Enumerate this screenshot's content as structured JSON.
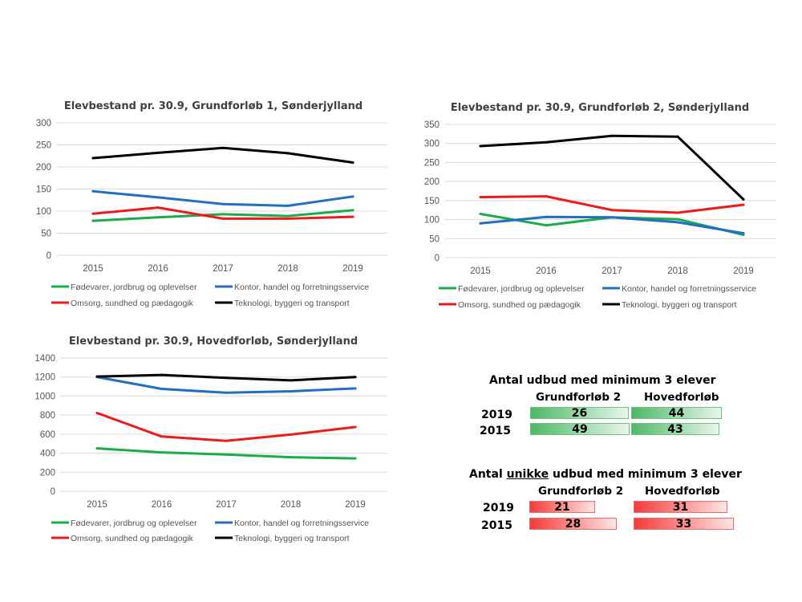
{
  "colors": {
    "Fødevarer, jordbrug og oplevelser": "#1aab4b",
    "Kontor, handel og forretningsservice": "#1f70c1",
    "Omsorg, sundhed og pædagogik": "#ea1c1c",
    "Teknologi, byggeri og transport": "#000000",
    "grid": "#d9d9d9",
    "table_green": "#4fb867",
    "table_red": "#f23b3b"
  },
  "chart_data": [
    {
      "type": "line",
      "title": "Elevbestand pr. 30.9, Grundforløb 1, Sønderjylland",
      "x": [
        "2015",
        "2016",
        "2017",
        "2018",
        "2019"
      ],
      "ylim": [
        0,
        300
      ],
      "yticks": [
        0,
        50,
        100,
        150,
        200,
        250,
        300
      ],
      "grid": true,
      "legend": "bottom",
      "series": [
        {
          "name": "Fødevarer, jordbrug og oplevelser",
          "values": [
            78,
            86,
            93,
            89,
            102
          ]
        },
        {
          "name": "Kontor, handel og forretningsservice",
          "values": [
            145,
            131,
            116,
            112,
            133
          ]
        },
        {
          "name": "Omsorg, sundhed og pædagogik",
          "values": [
            94,
            108,
            83,
            83,
            87
          ]
        },
        {
          "name": "Teknologi, byggeri og transport",
          "values": [
            220,
            232,
            243,
            231,
            210
          ]
        }
      ]
    },
    {
      "type": "line",
      "title": "Elevbestand pr. 30.9, Grundforløb 2, Sønderjylland",
      "x": [
        "2015",
        "2016",
        "2017",
        "2018",
        "2019"
      ],
      "ylim": [
        0,
        350
      ],
      "yticks": [
        0,
        50,
        100,
        150,
        200,
        250,
        300,
        350
      ],
      "grid": true,
      "legend": "bottom",
      "series": [
        {
          "name": "Fødevarer, jordbrug og oplevelser",
          "values": [
            115,
            85,
            106,
            101,
            60
          ]
        },
        {
          "name": "Kontor, handel og forretningsservice",
          "values": [
            90,
            107,
            106,
            93,
            64
          ]
        },
        {
          "name": "Omsorg, sundhed og pædagogik",
          "values": [
            159,
            161,
            125,
            118,
            139
          ]
        },
        {
          "name": "Teknologi, byggeri og transport",
          "values": [
            293,
            303,
            320,
            318,
            153
          ]
        }
      ]
    },
    {
      "type": "line",
      "title": "Elevbestand pr. 30.9, Hovedforløb, Sønderjylland",
      "x": [
        "2015",
        "2016",
        "2017",
        "2018",
        "2019"
      ],
      "ylim": [
        0,
        1400
      ],
      "yticks": [
        0,
        200,
        400,
        600,
        800,
        1000,
        1200,
        1400
      ],
      "grid": true,
      "legend": "bottom",
      "series": [
        {
          "name": "Fødevarer, jordbrug og oplevelser",
          "values": [
            450,
            408,
            385,
            358,
            345
          ]
        },
        {
          "name": "Kontor, handel og forretningsservice",
          "values": [
            1200,
            1075,
            1035,
            1050,
            1080
          ]
        },
        {
          "name": "Omsorg, sundhed og pædagogik",
          "values": [
            822,
            575,
            530,
            595,
            675
          ]
        },
        {
          "name": "Teknologi, byggeri og transport",
          "values": [
            1205,
            1222,
            1192,
            1165,
            1200
          ]
        }
      ]
    },
    {
      "type": "table",
      "title": "Antal udbud med minimum 3 elever",
      "columns": [
        "Grundforløb 2",
        "Hovedforløb"
      ],
      "rows": [
        {
          "year": "2019",
          "values": [
            26,
            44
          ]
        },
        {
          "year": "2015",
          "values": [
            49,
            43
          ]
        }
      ]
    },
    {
      "type": "table",
      "title_pre": "Antal ",
      "title_underlined": "unikke",
      "title_post": " udbud med minimum 3 elever",
      "columns": [
        "Grundforløb 2",
        "Hovedforløb"
      ],
      "rows": [
        {
          "year": "2019",
          "values": [
            21,
            31
          ]
        },
        {
          "year": "2015",
          "values": [
            28,
            33
          ]
        }
      ]
    }
  ]
}
